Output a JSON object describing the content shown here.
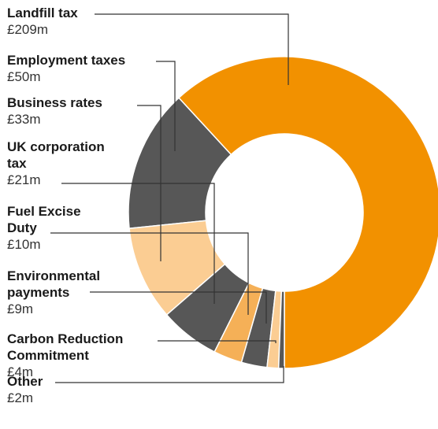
{
  "chart_data": {
    "type": "donut",
    "title": "",
    "unit": "£m",
    "start_angle_deg": 180,
    "direction": "counterclockwise",
    "series": [
      {
        "name": "Landfill tax",
        "value_label": "£209m",
        "value": 209,
        "color": "#f29100"
      },
      {
        "name": "Employment taxes",
        "value_label": "£50m",
        "value": 50,
        "color": "#575757"
      },
      {
        "name": "Business rates",
        "value_label": "£33m",
        "value": 33,
        "color": "#fbcd93"
      },
      {
        "name": "UK corporation tax",
        "value_label": "£21m",
        "value": 21,
        "color": "#575757"
      },
      {
        "name": "Fuel Excise Duty",
        "value_label": "£10m",
        "value": 10,
        "color": "#f5b057"
      },
      {
        "name": "Environmental payments",
        "value_label": "£9m",
        "value": 9,
        "color": "#575757"
      },
      {
        "name": "Carbon Reduction Commitment",
        "value_label": "£4m",
        "value": 4,
        "color": "#fbcd93"
      },
      {
        "name": "Other",
        "value_label": "£2m",
        "value": 2,
        "color": "#575757"
      }
    ]
  },
  "labels": [
    {
      "name_lines": [
        "Landfill tax"
      ],
      "value": "£209m"
    },
    {
      "name_lines": [
        "Employment taxes"
      ],
      "value": "£50m"
    },
    {
      "name_lines": [
        "Business rates"
      ],
      "value": "£33m"
    },
    {
      "name_lines": [
        "UK corporation",
        "tax"
      ],
      "value": "£21m"
    },
    {
      "name_lines": [
        "Fuel Excise",
        "Duty"
      ],
      "value": "£10m"
    },
    {
      "name_lines": [
        "Environmental",
        "payments"
      ],
      "value": "£9m"
    },
    {
      "name_lines": [
        "Carbon Reduction",
        "Commitment"
      ],
      "value": "£4m"
    },
    {
      "name_lines": [
        "Other"
      ],
      "value": "£2m"
    }
  ]
}
